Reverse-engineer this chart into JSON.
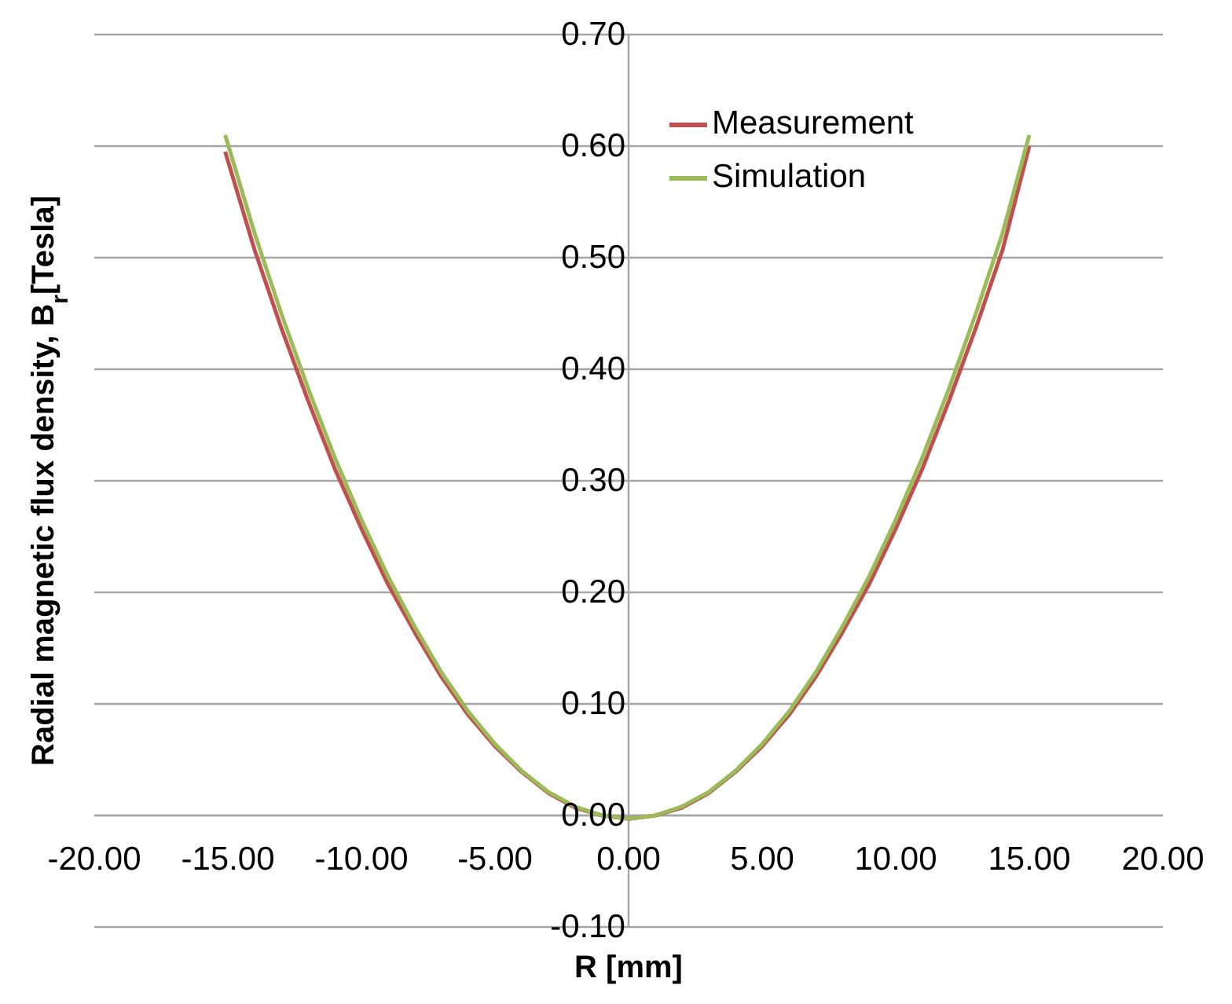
{
  "chart_data": {
    "type": "line",
    "xlabel": "R [mm]",
    "ylabel": "Radial magnetic flux density, B$_{r}$[Tesla]",
    "xlim": [
      -20,
      20
    ],
    "xticks": [
      {
        "value": -20,
        "label": "-20.00"
      },
      {
        "value": -15,
        "label": "-15.00"
      },
      {
        "value": -10,
        "label": "-10.00"
      },
      {
        "value": -5,
        "label": "-5.00"
      },
      {
        "value": 0,
        "label": "0.00"
      },
      {
        "value": 5,
        "label": "5.00"
      },
      {
        "value": 10,
        "label": "10.00"
      },
      {
        "value": 15,
        "label": "15.00"
      },
      {
        "value": 20,
        "label": "20.00"
      }
    ],
    "ylim": [
      -0.1,
      0.7
    ],
    "yticks": [
      {
        "value": -0.1,
        "label": "-0.10"
      },
      {
        "value": 0,
        "label": "0.00"
      },
      {
        "value": 0.1,
        "label": "0.10"
      },
      {
        "value": 0.2,
        "label": "0.20"
      },
      {
        "value": 0.3,
        "label": "0.30"
      },
      {
        "value": 0.4,
        "label": "0.40"
      },
      {
        "value": 0.5,
        "label": "0.50"
      },
      {
        "value": 0.6,
        "label": "0.60"
      },
      {
        "value": 0.7,
        "label": "0.70"
      }
    ],
    "x": [
      -15.1,
      -14,
      -13,
      -12,
      -11,
      -10,
      -9,
      -8,
      -7,
      -6,
      -5,
      -4,
      -3,
      -2,
      -1,
      0,
      1,
      2,
      3,
      4,
      5,
      6,
      7,
      8,
      9,
      10,
      11,
      12,
      13,
      14,
      15
    ],
    "series": [
      {
        "name": "Measurement",
        "color": "#c0504d",
        "values": [
          0.595,
          0.507,
          0.437,
          0.372,
          0.311,
          0.257,
          0.207,
          0.164,
          0.124,
          0.09,
          0.062,
          0.039,
          0.02,
          0.007,
          0.0,
          -0.003,
          0.0,
          0.007,
          0.02,
          0.039,
          0.062,
          0.09,
          0.124,
          0.164,
          0.207,
          0.257,
          0.311,
          0.372,
          0.437,
          0.507,
          0.6
        ]
      },
      {
        "name": "Simulation",
        "color": "#9bbb59",
        "values": [
          0.61,
          0.522,
          0.45,
          0.383,
          0.321,
          0.265,
          0.214,
          0.169,
          0.128,
          0.093,
          0.064,
          0.04,
          0.021,
          0.008,
          0.0,
          -0.003,
          0.0,
          0.008,
          0.021,
          0.04,
          0.064,
          0.093,
          0.128,
          0.169,
          0.214,
          0.265,
          0.321,
          0.383,
          0.45,
          0.522,
          0.61
        ]
      }
    ],
    "grid": "y",
    "legend": "top right",
    "marker": "none",
    "line_style": "solid"
  }
}
